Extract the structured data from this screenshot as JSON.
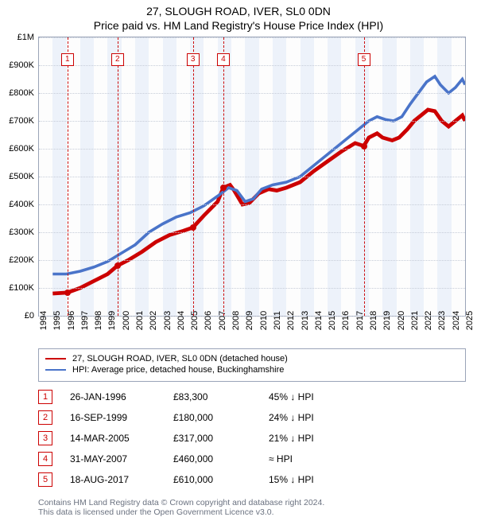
{
  "title_line1": "27, SLOUGH ROAD, IVER, SL0 0DN",
  "title_line2": "Price paid vs. HM Land Registry's House Price Index (HPI)",
  "chart": {
    "type": "line",
    "x_start_year": 1994,
    "x_end_year": 2025,
    "y_min": 0,
    "y_max": 1000000,
    "y_ticks": [
      0,
      100000,
      200000,
      300000,
      400000,
      500000,
      600000,
      700000,
      800000,
      900000,
      1000000
    ],
    "y_labels": [
      "£0",
      "£100K",
      "£200K",
      "£300K",
      "£400K",
      "£500K",
      "£600K",
      "£700K",
      "£800K",
      "£900K",
      "£1M"
    ],
    "x_ticks": [
      1994,
      1995,
      1996,
      1997,
      1998,
      1999,
      2000,
      2001,
      2002,
      2003,
      2004,
      2005,
      2006,
      2007,
      2008,
      2009,
      2010,
      2011,
      2012,
      2013,
      2014,
      2015,
      2016,
      2017,
      2018,
      2019,
      2020,
      2021,
      2022,
      2023,
      2024,
      2025
    ],
    "band_color": "#edf2fa",
    "grid_color": "#c6ccd8",
    "border_color": "#9aa4b8",
    "series": [
      {
        "name": "27, SLOUGH ROAD, IVER, SL0 0DN (detached house)",
        "color": "#cc0000",
        "width": 1.6,
        "points": [
          [
            1995.0,
            80000
          ],
          [
            1996.07,
            83300
          ],
          [
            1997.0,
            100000
          ],
          [
            1998.0,
            125000
          ],
          [
            1999.0,
            150000
          ],
          [
            1999.71,
            180000
          ],
          [
            2000.5,
            200000
          ],
          [
            2001.5,
            230000
          ],
          [
            2002.5,
            265000
          ],
          [
            2003.5,
            290000
          ],
          [
            2004.5,
            305000
          ],
          [
            2005.2,
            317000
          ],
          [
            2006.0,
            360000
          ],
          [
            2007.0,
            410000
          ],
          [
            2007.41,
            460000
          ],
          [
            2007.9,
            470000
          ],
          [
            2008.2,
            450000
          ],
          [
            2008.8,
            400000
          ],
          [
            2009.3,
            405000
          ],
          [
            2010.0,
            440000
          ],
          [
            2010.7,
            455000
          ],
          [
            2011.3,
            450000
          ],
          [
            2012.0,
            460000
          ],
          [
            2013.0,
            480000
          ],
          [
            2014.0,
            520000
          ],
          [
            2015.0,
            555000
          ],
          [
            2016.0,
            590000
          ],
          [
            2017.0,
            620000
          ],
          [
            2017.63,
            610000
          ],
          [
            2018.0,
            640000
          ],
          [
            2018.6,
            655000
          ],
          [
            2019.0,
            640000
          ],
          [
            2019.7,
            630000
          ],
          [
            2020.2,
            640000
          ],
          [
            2020.8,
            670000
          ],
          [
            2021.3,
            700000
          ],
          [
            2021.8,
            720000
          ],
          [
            2022.3,
            740000
          ],
          [
            2022.8,
            735000
          ],
          [
            2023.3,
            700000
          ],
          [
            2023.8,
            680000
          ],
          [
            2024.3,
            700000
          ],
          [
            2024.8,
            720000
          ],
          [
            2025.0,
            700000
          ]
        ]
      },
      {
        "name": "HPI: Average price, detached house, Buckinghamshire",
        "color": "#4a74c9",
        "width": 1.2,
        "points": [
          [
            1995.0,
            150000
          ],
          [
            1996.0,
            150000
          ],
          [
            1997.0,
            160000
          ],
          [
            1998.0,
            175000
          ],
          [
            1999.0,
            195000
          ],
          [
            2000.0,
            225000
          ],
          [
            2001.0,
            255000
          ],
          [
            2002.0,
            300000
          ],
          [
            2003.0,
            330000
          ],
          [
            2004.0,
            355000
          ],
          [
            2005.0,
            370000
          ],
          [
            2006.0,
            395000
          ],
          [
            2007.0,
            430000
          ],
          [
            2007.8,
            460000
          ],
          [
            2008.4,
            450000
          ],
          [
            2009.0,
            410000
          ],
          [
            2009.6,
            420000
          ],
          [
            2010.2,
            455000
          ],
          [
            2011.0,
            470000
          ],
          [
            2012.0,
            480000
          ],
          [
            2013.0,
            500000
          ],
          [
            2014.0,
            540000
          ],
          [
            2015.0,
            580000
          ],
          [
            2016.0,
            620000
          ],
          [
            2017.0,
            660000
          ],
          [
            2018.0,
            700000
          ],
          [
            2018.6,
            715000
          ],
          [
            2019.2,
            705000
          ],
          [
            2019.8,
            700000
          ],
          [
            2020.4,
            715000
          ],
          [
            2021.0,
            760000
          ],
          [
            2021.6,
            800000
          ],
          [
            2022.2,
            840000
          ],
          [
            2022.8,
            860000
          ],
          [
            2023.2,
            830000
          ],
          [
            2023.8,
            800000
          ],
          [
            2024.3,
            820000
          ],
          [
            2024.8,
            850000
          ],
          [
            2025.0,
            830000
          ]
        ]
      }
    ],
    "sale_markers": [
      {
        "n": "1",
        "year": 1996.07,
        "price": 83300
      },
      {
        "n": "2",
        "year": 1999.71,
        "price": 180000
      },
      {
        "n": "3",
        "year": 2005.2,
        "price": 317000
      },
      {
        "n": "4",
        "year": 2007.41,
        "price": 460000
      },
      {
        "n": "5",
        "year": 2017.63,
        "price": 610000
      }
    ],
    "marker_top": 20,
    "marker_color": "#cc0000"
  },
  "legend": {
    "items": [
      {
        "color": "#cc0000",
        "label": "27, SLOUGH ROAD, IVER, SL0 0DN (detached house)"
      },
      {
        "color": "#4a74c9",
        "label": "HPI: Average price, detached house, Buckinghamshire"
      }
    ]
  },
  "sales": [
    {
      "n": "1",
      "date": "26-JAN-1996",
      "price": "£83,300",
      "diff": "45% ↓ HPI"
    },
    {
      "n": "2",
      "date": "16-SEP-1999",
      "price": "£180,000",
      "diff": "24% ↓ HPI"
    },
    {
      "n": "3",
      "date": "14-MAR-2005",
      "price": "£317,000",
      "diff": "21% ↓ HPI"
    },
    {
      "n": "4",
      "date": "31-MAY-2007",
      "price": "£460,000",
      "diff": "≈ HPI"
    },
    {
      "n": "5",
      "date": "18-AUG-2017",
      "price": "£610,000",
      "diff": "15% ↓ HPI"
    }
  ],
  "attribution": {
    "line1": "Contains HM Land Registry data © Crown copyright and database right 2024.",
    "line2": "This data is licensed under the Open Government Licence v3.0."
  }
}
